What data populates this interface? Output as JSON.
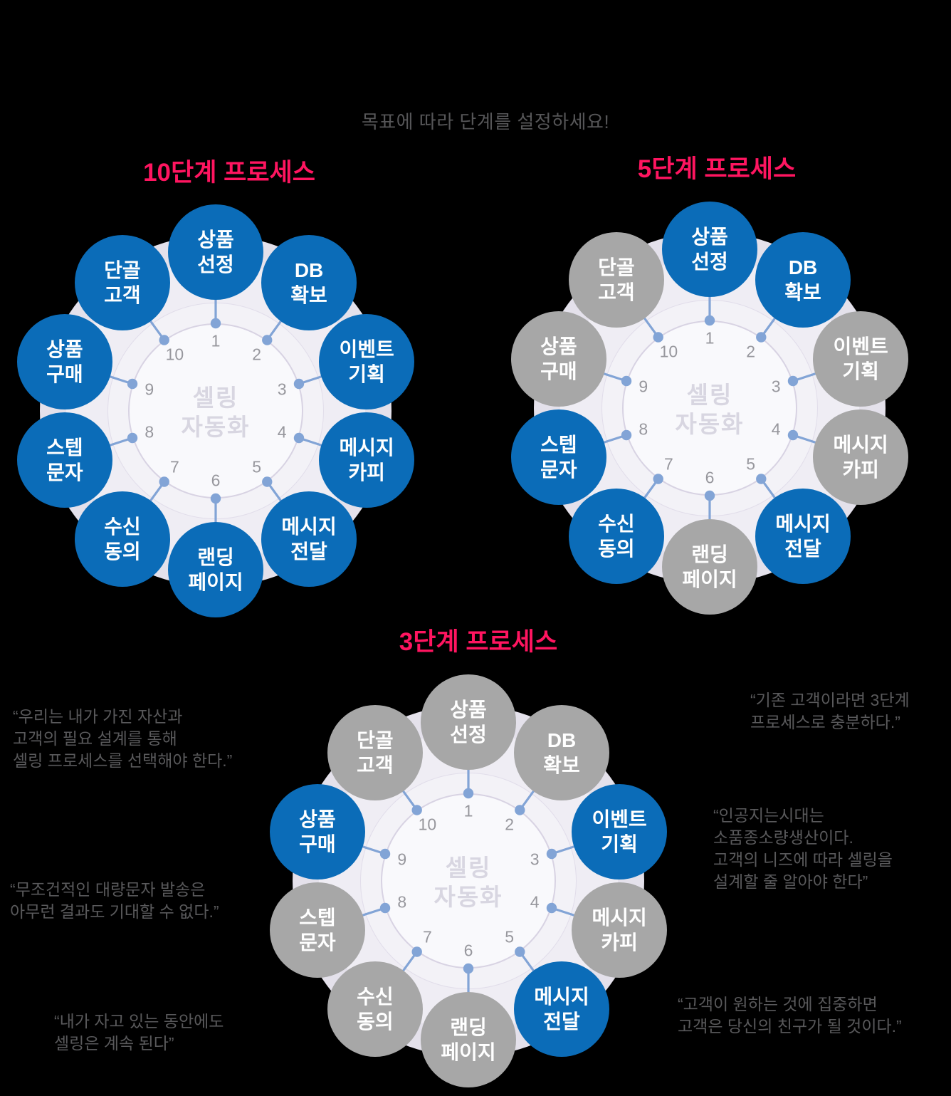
{
  "subtitle": "목표에 따라 단계를 설정하세요!",
  "center_label": "셀링\n자동화",
  "steps": [
    {
      "num": "1",
      "label": "상품\n선정"
    },
    {
      "num": "2",
      "label": "DB\n확보"
    },
    {
      "num": "3",
      "label": "이벤트\n기획"
    },
    {
      "num": "4",
      "label": "메시지\n카피"
    },
    {
      "num": "5",
      "label": "메시지\n전달"
    },
    {
      "num": "6",
      "label": "랜딩\n페이지"
    },
    {
      "num": "7",
      "label": "수신\n동의"
    },
    {
      "num": "8",
      "label": "스텝\n문자"
    },
    {
      "num": "9",
      "label": "상품\n구매"
    },
    {
      "num": "10",
      "label": "단골\n고객"
    }
  ],
  "diagrams": [
    {
      "title": "10단계 프로세스",
      "active_steps": [
        1,
        2,
        3,
        4,
        5,
        6,
        7,
        8,
        9,
        10
      ]
    },
    {
      "title": "5단계 프로세스",
      "active_steps": [
        1,
        2,
        5,
        7,
        8
      ]
    },
    {
      "title": "3단계 프로세스",
      "active_steps": [
        3,
        5,
        9
      ]
    }
  ],
  "quotes": [
    {
      "text": "“우리는 내가 가진 자산과\n고객의 필요 설계를 통해\n셀링 프로세스를 선택해야 한다.”"
    },
    {
      "text": "“무조건적인 대량문자 발송은\n아무런 결과도 기대할 수 없다.”"
    },
    {
      "text": "“내가 자고 있는 동안에도\n셀링은 계속 된다”"
    },
    {
      "text": "“기존 고객이라면 3단계\n프로세스로 충분하다.”"
    },
    {
      "text": "“인공지는시대는\n소품종소량생산이다.\n고객의 니즈에 따라 셀링을\n설계할 줄 알아야 한다”"
    },
    {
      "text": "“고객이 원하는 것에 집중하면\n고객은 당신의 친구가 될 것이다.”"
    }
  ],
  "colors": {
    "background": "#000000",
    "title": "#ff1560",
    "active_step": "#0b6cb8",
    "inactive_step": "#a7a7a7",
    "connector": "#82a4d6",
    "number": "#97979d",
    "center_label": "#d8d6e1",
    "quote_text": "#59595b",
    "subtitle_text": "#565658"
  }
}
